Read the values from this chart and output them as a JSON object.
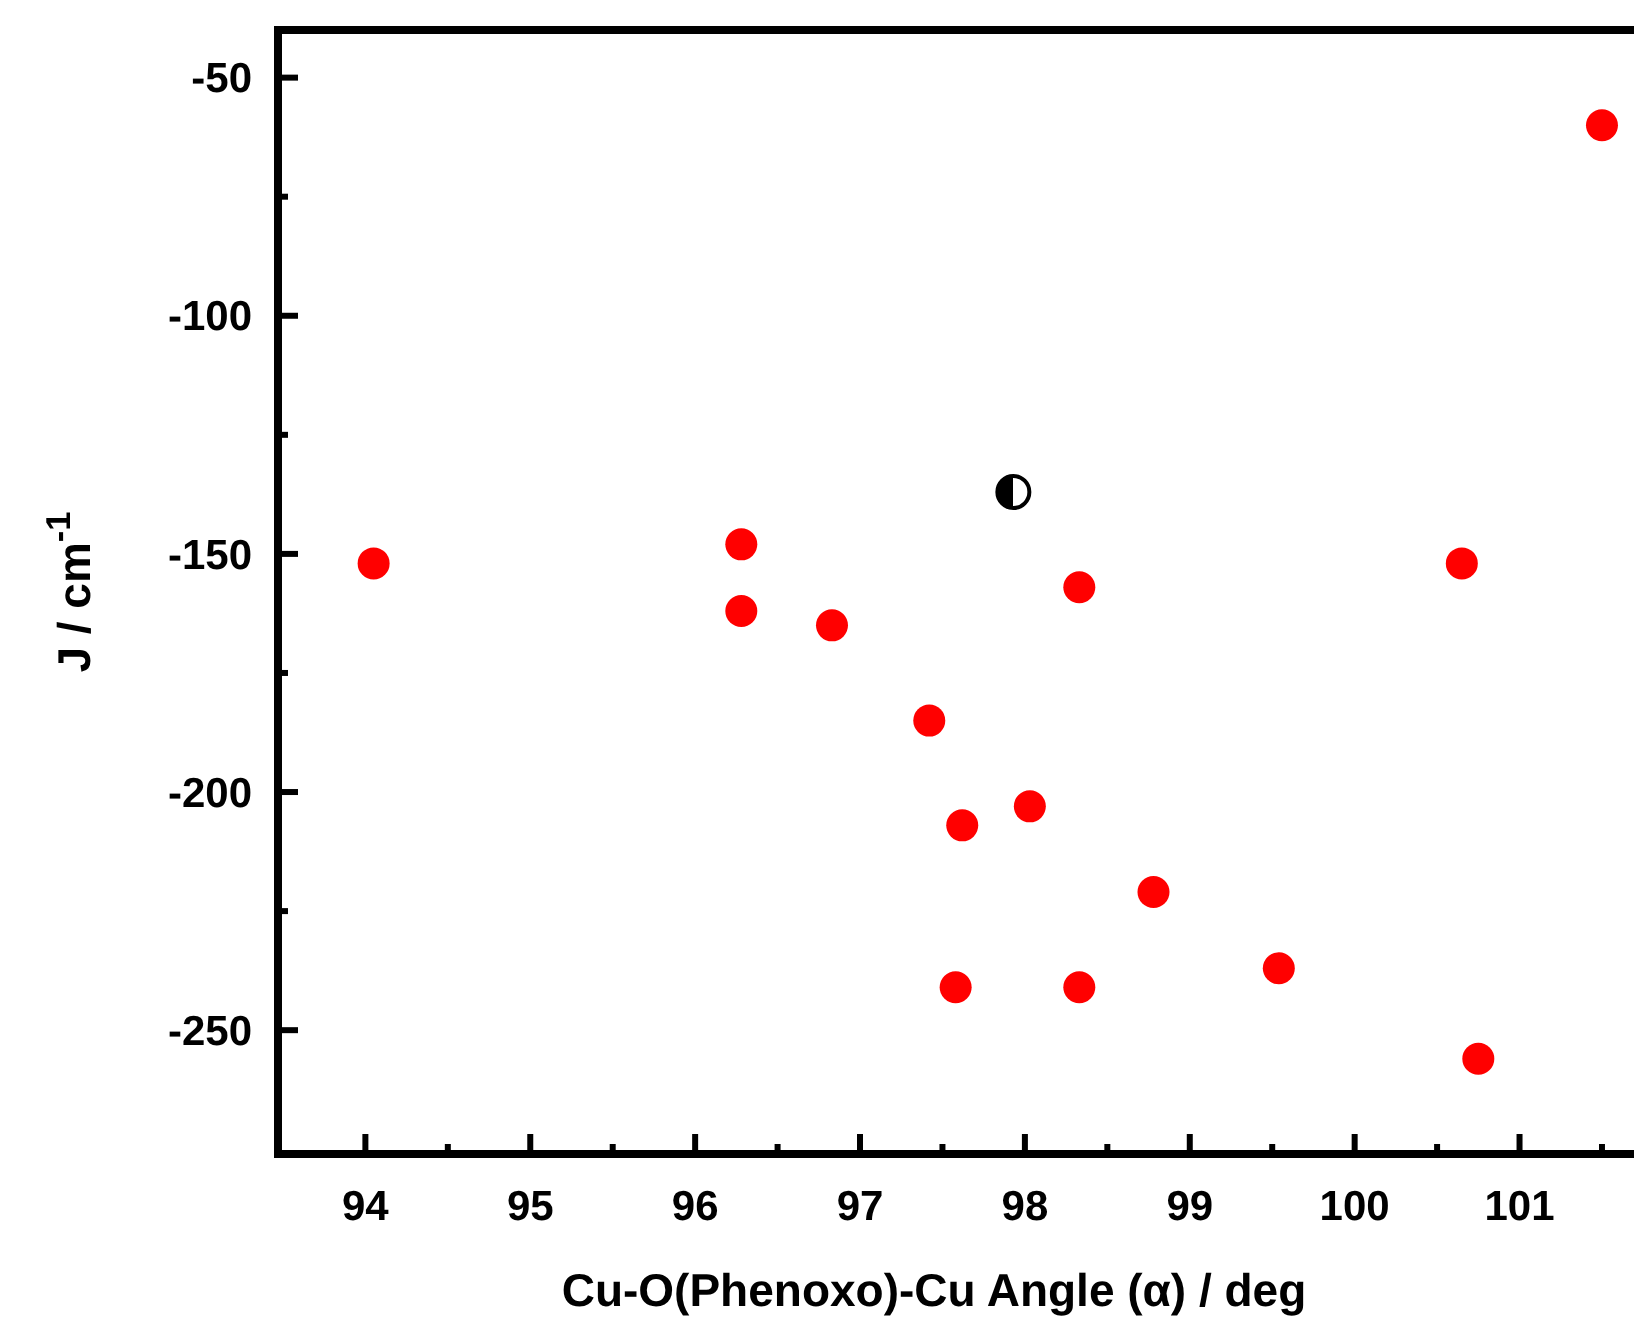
{
  "chart_data": {
    "type": "scatter",
    "xlabel": "Cu-O(Phenoxo)-Cu Angle (α) / deg",
    "ylabel": "J / cm$^{-1}$",
    "xlim": [
      93.47,
      101.67
    ],
    "ylim": [
      -276,
      -40
    ],
    "xticks": [
      94,
      95,
      96,
      97,
      98,
      99,
      100,
      101
    ],
    "yticks": [
      -250,
      -200,
      -150,
      -100,
      -50
    ],
    "marker": "circle",
    "grid": false,
    "series": [
      {
        "color": "#ff0000",
        "x": [
          94.05,
          96.28,
          96.28,
          96.83,
          97.42,
          97.62,
          97.58,
          98.03,
          98.33,
          98.33,
          98.78,
          99.54,
          100.65,
          100.75,
          101.5
        ],
        "values": [
          -152,
          -148,
          -162,
          -165,
          -185,
          -207,
          -241,
          -203,
          -157,
          -241,
          -221,
          -237,
          -152,
          -256,
          -60
        ]
      },
      {
        "color": "#000000",
        "x": [
          97.93
        ],
        "values": [
          -137
        ]
      }
    ]
  }
}
